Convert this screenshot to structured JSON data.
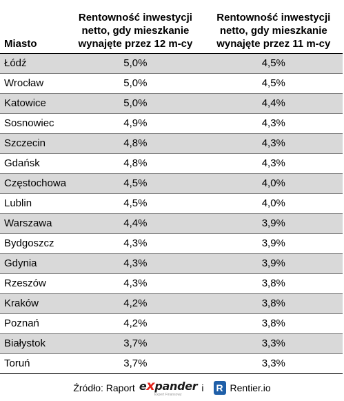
{
  "table": {
    "headers": {
      "city": "Miasto",
      "col_a": "Rentowność inwestycji netto, gdy mieszkanie wynajęte przez 12 m-cy",
      "col_b": "Rentowność inwestycji netto, gdy mieszkanie wynajęte przez 11 m-cy"
    },
    "rows": [
      {
        "city": "Łódź",
        "a": "5,0%",
        "b": "4,5%"
      },
      {
        "city": "Wrocław",
        "a": "5,0%",
        "b": "4,5%"
      },
      {
        "city": "Katowice",
        "a": "5,0%",
        "b": "4,4%"
      },
      {
        "city": "Sosnowiec",
        "a": "4,9%",
        "b": "4,3%"
      },
      {
        "city": "Szczecin",
        "a": "4,8%",
        "b": "4,3%"
      },
      {
        "city": "Gdańsk",
        "a": "4,8%",
        "b": "4,3%"
      },
      {
        "city": "Częstochowa",
        "a": "4,5%",
        "b": "4,0%"
      },
      {
        "city": "Lublin",
        "a": "4,5%",
        "b": "4,0%"
      },
      {
        "city": "Warszawa",
        "a": "4,4%",
        "b": "3,9%"
      },
      {
        "city": "Bydgoszcz",
        "a": "4,3%",
        "b": "3,9%"
      },
      {
        "city": "Gdynia",
        "a": "4,3%",
        "b": "3,9%"
      },
      {
        "city": "Rzeszów",
        "a": "4,3%",
        "b": "3,8%"
      },
      {
        "city": "Kraków",
        "a": "4,2%",
        "b": "3,8%"
      },
      {
        "city": "Poznań",
        "a": "4,2%",
        "b": "3,8%"
      },
      {
        "city": "Białystok",
        "a": "3,7%",
        "b": "3,3%"
      },
      {
        "city": "Toruń",
        "a": "3,7%",
        "b": "3,3%"
      }
    ],
    "shade_color": "#d9d9d9"
  },
  "footer": {
    "source_label": "Źródło: Raport",
    "expander_pre": "e",
    "expander_x": "x",
    "expander_post": "pander",
    "expander_tagline": "Expert Finansowy",
    "conjunction": "i",
    "rentier_badge": "R",
    "rentier_label": "Rentier.io",
    "brand_colors": {
      "expander_accent": "#e2231a",
      "rentier_badge": "#1f5fa8"
    }
  }
}
